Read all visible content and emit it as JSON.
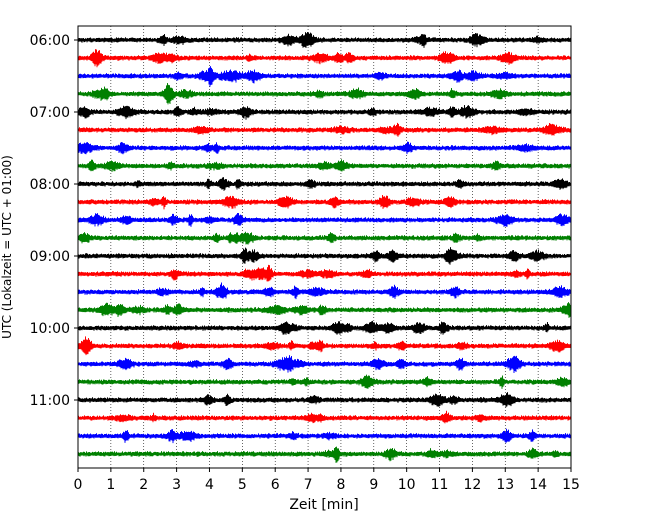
{
  "chart_data": {
    "type": "line",
    "subtype": "helicorder-seismogram",
    "xlabel": "Zeit  [min]",
    "ylabel": "UTC (Lokalzeit = UTC + 01:00)",
    "xlim": [
      0,
      15
    ],
    "x_ticks": [
      "0",
      "1",
      "2",
      "3",
      "4",
      "5",
      "6",
      "7",
      "8",
      "9",
      "10",
      "11",
      "12",
      "13",
      "14",
      "15"
    ],
    "y_tick_labels": [
      "06:00",
      "07:00",
      "08:00",
      "09:00",
      "10:00",
      "11:00"
    ],
    "vertical_grid": "dotted",
    "trace_colors": [
      "#000000",
      "#ff0000",
      "#0000ff",
      "#008000"
    ],
    "series": [
      {
        "start": "06:00",
        "color": "#000000"
      },
      {
        "start": "06:15",
        "color": "#ff0000"
      },
      {
        "start": "06:30",
        "color": "#0000ff"
      },
      {
        "start": "06:45",
        "color": "#008000"
      },
      {
        "start": "07:00",
        "color": "#000000"
      },
      {
        "start": "07:15",
        "color": "#ff0000"
      },
      {
        "start": "07:30",
        "color": "#0000ff"
      },
      {
        "start": "07:45",
        "color": "#008000"
      },
      {
        "start": "08:00",
        "color": "#000000"
      },
      {
        "start": "08:15",
        "color": "#ff0000"
      },
      {
        "start": "08:30",
        "color": "#0000ff"
      },
      {
        "start": "08:45",
        "color": "#008000"
      },
      {
        "start": "09:00",
        "color": "#000000"
      },
      {
        "start": "09:15",
        "color": "#ff0000"
      },
      {
        "start": "09:30",
        "color": "#0000ff"
      },
      {
        "start": "09:45",
        "color": "#008000"
      },
      {
        "start": "10:00",
        "color": "#000000"
      },
      {
        "start": "10:15",
        "color": "#ff0000"
      },
      {
        "start": "10:30",
        "color": "#0000ff"
      },
      {
        "start": "10:45",
        "color": "#008000"
      },
      {
        "start": "11:00",
        "color": "#000000"
      },
      {
        "start": "11:15",
        "color": "#ff0000"
      },
      {
        "start": "11:30",
        "color": "#0000ff"
      },
      {
        "start": "11:45",
        "color": "#008000"
      }
    ]
  }
}
